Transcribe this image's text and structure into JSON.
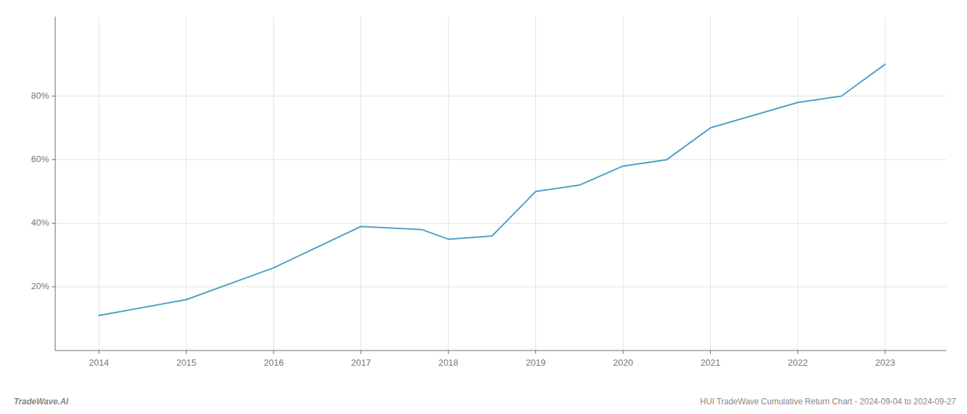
{
  "chart_data": {
    "type": "line",
    "x": [
      2014,
      2015,
      2016,
      2017,
      2017.7,
      2018,
      2018.5,
      2019,
      2019.5,
      2020,
      2020.5,
      2021,
      2022,
      2022.5,
      2023
    ],
    "values": [
      11,
      16,
      26,
      39,
      38,
      35,
      36,
      50,
      52,
      58,
      60,
      70,
      78,
      80,
      90
    ],
    "color": "#4a9fc4",
    "xlim": [
      2013.5,
      2023.7
    ],
    "xticks": [
      2014,
      2015,
      2016,
      2017,
      2018,
      2019,
      2020,
      2021,
      2022,
      2023
    ],
    "ylim": [
      0,
      105
    ],
    "yticks": [
      {
        "value": 20,
        "label": "20%"
      },
      {
        "value": 40,
        "label": "40%"
      },
      {
        "value": 60,
        "label": "60%"
      },
      {
        "value": 80,
        "label": "80%"
      }
    ],
    "grid": true,
    "annotations": [
      "TradeWave.AI",
      "HUI TradeWave Cumulative Return Chart - 2024-09-04 to 2024-09-27"
    ]
  }
}
